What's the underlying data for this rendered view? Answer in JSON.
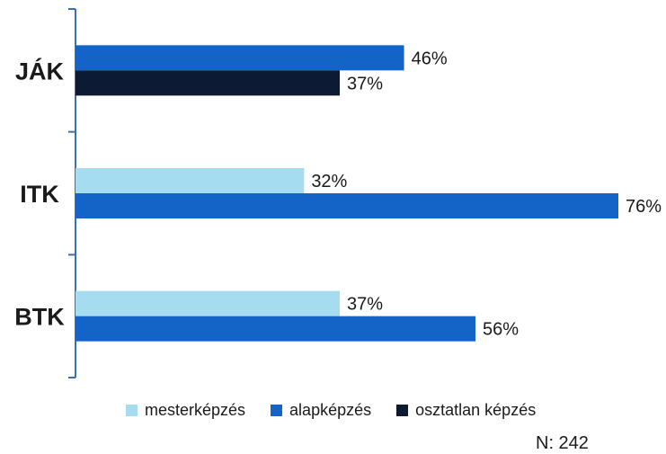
{
  "chart_data": {
    "type": "bar",
    "orientation": "horizontal",
    "categories": [
      "JÁK",
      "ITK",
      "BTK"
    ],
    "series": [
      {
        "name": "mesterképzés",
        "color": "#a6dcf0",
        "values": [
          null,
          32,
          37
        ],
        "labels": [
          "",
          "32%",
          "37%"
        ]
      },
      {
        "name": "alapképzés",
        "color": "#1464c8",
        "values": [
          46,
          76,
          56
        ],
        "labels": [
          "46%",
          "76%",
          "56%"
        ]
      },
      {
        "name": "osztatlan képzés",
        "color": "#0d1a33",
        "values": [
          37,
          null,
          null
        ],
        "labels": [
          "37%",
          "",
          ""
        ]
      }
    ],
    "xlim": [
      0,
      76
    ],
    "unit": "%",
    "grid": false,
    "legend_position": "bottom",
    "note": "N: 242"
  }
}
